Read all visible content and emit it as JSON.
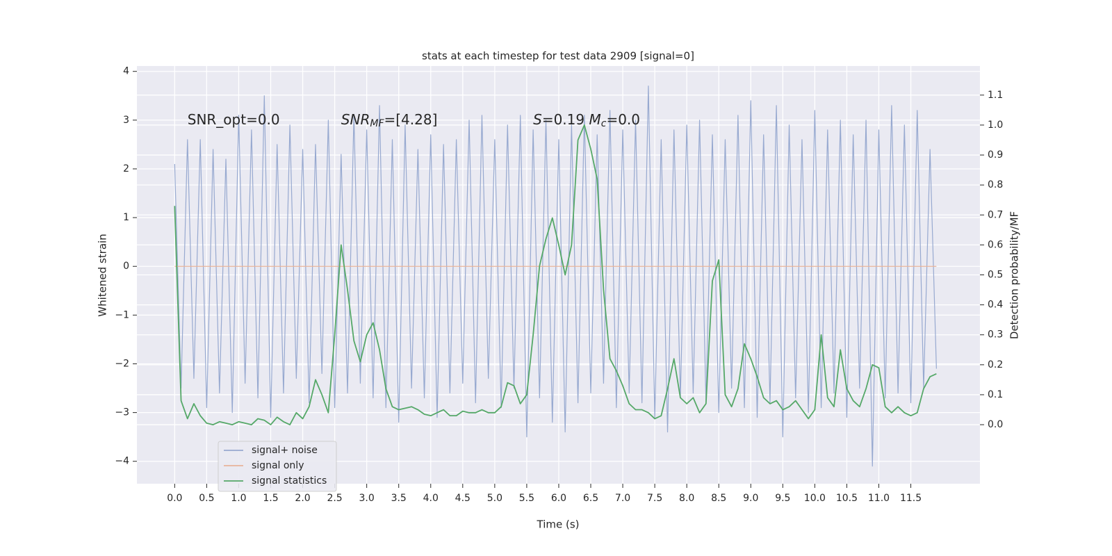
{
  "chart_data": {
    "type": "line",
    "title": "stats at each timestep for test data 2909 [signal=0]",
    "x_label": "Time (s)",
    "y_label": "Whitened strain",
    "y2_label": "Detection probability/MF",
    "xlim": [
      -0.59,
      12.58
    ],
    "ylim": [
      -4.46,
      4.11
    ],
    "y2lim": [
      -0.197,
      1.197
    ],
    "xticks": [
      {
        "value": 0,
        "label": "0.0"
      },
      0.5,
      {
        "value": 1,
        "label": "1.0"
      },
      1.5,
      {
        "value": 2,
        "label": "2.0"
      },
      2.5,
      {
        "value": 3,
        "label": "3.0"
      },
      3.5,
      {
        "value": 4,
        "label": "4.0"
      },
      4.5,
      {
        "value": 5,
        "label": "5.0"
      },
      5.5,
      {
        "value": 6,
        "label": "6.0"
      },
      6.5,
      {
        "value": 7,
        "label": "7.0"
      },
      7.5,
      {
        "value": 8,
        "label": "8.0"
      },
      8.5,
      {
        "value": 9,
        "label": "9.0"
      },
      9.5,
      {
        "value": 10,
        "label": "10.0"
      },
      10.5,
      {
        "value": 11,
        "label": "11.0"
      },
      11.5
    ],
    "yticks": [
      {
        "value": -4,
        "label": "−4"
      },
      {
        "value": -3,
        "label": "−3"
      },
      {
        "value": -2,
        "label": "−2"
      },
      {
        "value": -1,
        "label": "−1"
      },
      0,
      1,
      2,
      3,
      4
    ],
    "y2ticks": [
      {
        "value": 0,
        "label": "0.0"
      },
      0.1,
      0.2,
      0.3,
      0.4,
      0.5,
      0.6,
      0.7,
      0.8,
      0.9,
      {
        "value": 1,
        "label": "1.0"
      },
      1.1
    ],
    "grid": true,
    "legend": "lower left",
    "x": [
      0,
      0.1,
      0.2,
      0.3,
      0.4,
      0.5,
      0.6,
      0.7,
      0.8,
      0.9,
      1,
      1.1,
      1.2,
      1.3,
      1.4,
      1.5,
      1.6,
      1.7,
      1.8,
      1.9,
      2,
      2.1,
      2.2,
      2.3,
      2.4,
      2.5,
      2.6,
      2.7,
      2.8,
      2.9,
      3,
      3.1,
      3.2,
      3.3,
      3.4,
      3.5,
      3.6,
      3.7,
      3.8,
      3.9,
      4,
      4.1,
      4.2,
      4.3,
      4.4,
      4.5,
      4.6,
      4.7,
      4.8,
      4.9,
      5,
      5.1,
      5.2,
      5.3,
      5.4,
      5.5,
      5.6,
      5.7,
      5.8,
      5.9,
      6,
      6.1,
      6.2,
      6.3,
      6.4,
      6.5,
      6.6,
      6.7,
      6.8,
      6.9,
      7,
      7.1,
      7.2,
      7.3,
      7.4,
      7.5,
      7.6,
      7.7,
      7.8,
      7.9,
      8,
      8.1,
      8.2,
      8.3,
      8.4,
      8.5,
      8.6,
      8.7,
      8.8,
      8.9,
      9,
      9.1,
      9.2,
      9.3,
      9.4,
      9.5,
      9.6,
      9.7,
      9.8,
      9.9,
      10,
      10.1,
      10.2,
      10.3,
      10.4,
      10.5,
      10.6,
      10.7,
      10.8,
      10.9,
      11,
      11.1,
      11.2,
      11.3,
      11.4,
      11.5,
      11.6,
      11.7,
      11.8,
      11.9
    ],
    "series": [
      {
        "name": "signal+ noise",
        "color": "#97a9d0",
        "values": [
          2.1,
          -2.5,
          2.6,
          -2.3,
          2.6,
          -2.9,
          2.4,
          -2.6,
          2.2,
          -3.0,
          3.1,
          -2.4,
          2.8,
          -2.7,
          3.5,
          -3.1,
          2.5,
          -2.6,
          2.9,
          -2.3,
          2.4,
          -2.8,
          2.5,
          -2.2,
          3.0,
          -2.9,
          2.3,
          -2.6,
          3.1,
          -2.4,
          2.8,
          -2.7,
          3.3,
          -2.9,
          2.6,
          -3.2,
          2.9,
          -2.5,
          2.4,
          -2.7,
          2.7,
          -3.1,
          2.5,
          -2.6,
          2.6,
          -2.4,
          3.0,
          -2.8,
          3.1,
          -2.3,
          2.6,
          -2.9,
          2.9,
          -2.5,
          3.1,
          -3.5,
          2.8,
          -2.7,
          3.0,
          -3.2,
          2.6,
          -3.4,
          2.9,
          -2.8,
          3.1,
          -2.6,
          2.7,
          -2.4,
          3.2,
          -2.9,
          2.8,
          -2.6,
          3.0,
          -2.8,
          3.7,
          -3.1,
          2.6,
          -3.4,
          2.8,
          -2.7,
          2.9,
          -2.6,
          3.0,
          -2.8,
          2.7,
          -3.0,
          2.6,
          -2.5,
          3.1,
          -2.9,
          3.4,
          -3.1,
          2.7,
          -2.8,
          3.3,
          -3.5,
          2.9,
          -2.7,
          2.6,
          -3.0,
          3.2,
          -2.9,
          2.8,
          -2.6,
          3.0,
          -3.1,
          2.7,
          -2.5,
          3.0,
          -4.1,
          2.8,
          -2.7,
          3.3,
          -2.6,
          2.9,
          -2.8,
          3.2,
          -2.5,
          2.4,
          -2.1
        ]
      },
      {
        "name": "signal only",
        "color": "#e8b39a",
        "values": [
          0,
          0,
          0,
          0,
          0,
          0,
          0,
          0,
          0,
          0,
          0,
          0,
          0,
          0,
          0,
          0,
          0,
          0,
          0,
          0,
          0,
          0,
          0,
          0,
          0,
          0,
          0,
          0,
          0,
          0,
          0,
          0,
          0,
          0,
          0,
          0,
          0,
          0,
          0,
          0,
          0,
          0,
          0,
          0,
          0,
          0,
          0,
          0,
          0,
          0,
          0,
          0,
          0,
          0,
          0,
          0,
          0,
          0,
          0,
          0,
          0,
          0,
          0,
          0,
          0,
          0,
          0,
          0,
          0,
          0,
          0,
          0,
          0,
          0,
          0,
          0,
          0,
          0,
          0,
          0,
          0,
          0,
          0,
          0,
          0,
          0,
          0,
          0,
          0,
          0,
          0,
          0,
          0,
          0,
          0,
          0,
          0,
          0,
          0,
          0,
          0,
          0,
          0,
          0,
          0,
          0,
          0,
          0,
          0,
          0,
          0,
          0,
          0,
          0,
          0,
          0,
          0,
          0,
          0,
          0
        ]
      },
      {
        "name": "signal statistics",
        "color": "#55a868",
        "axis": "y2",
        "values": [
          0.73,
          0.08,
          0.02,
          0.07,
          0.03,
          0.005,
          0.0,
          0.01,
          0.005,
          0.0,
          0.01,
          0.005,
          0.0,
          0.02,
          0.015,
          0.0,
          0.025,
          0.01,
          0.0,
          0.04,
          0.02,
          0.06,
          0.15,
          0.1,
          0.04,
          0.3,
          0.6,
          0.45,
          0.28,
          0.21,
          0.3,
          0.34,
          0.25,
          0.12,
          0.06,
          0.05,
          0.055,
          0.06,
          0.05,
          0.035,
          0.03,
          0.04,
          0.05,
          0.03,
          0.03,
          0.045,
          0.04,
          0.04,
          0.05,
          0.04,
          0.04,
          0.06,
          0.14,
          0.13,
          0.07,
          0.1,
          0.3,
          0.53,
          0.62,
          0.69,
          0.6,
          0.5,
          0.6,
          0.95,
          1.0,
          0.92,
          0.82,
          0.45,
          0.22,
          0.18,
          0.13,
          0.07,
          0.05,
          0.05,
          0.04,
          0.02,
          0.03,
          0.12,
          0.22,
          0.09,
          0.07,
          0.09,
          0.04,
          0.07,
          0.48,
          0.55,
          0.1,
          0.06,
          0.12,
          0.27,
          0.22,
          0.16,
          0.09,
          0.07,
          0.08,
          0.05,
          0.06,
          0.08,
          0.05,
          0.02,
          0.05,
          0.3,
          0.09,
          0.06,
          0.25,
          0.12,
          0.08,
          0.06,
          0.12,
          0.2,
          0.19,
          0.06,
          0.04,
          0.06,
          0.04,
          0.03,
          0.04,
          0.12,
          0.16,
          0.17
        ]
      }
    ],
    "annotations": [
      {
        "x": 0.2,
        "y": 3,
        "parts": [
          "SNR_opt=0.0"
        ],
        "formats": [
          "normal"
        ]
      },
      {
        "x": 2.6,
        "y": 3,
        "parts": [
          "SNR",
          "MF",
          "=[4.28]"
        ],
        "formats": [
          "italic",
          "italic-sub",
          "normal"
        ]
      },
      {
        "x": 5.6,
        "y": 3,
        "parts": [
          "S",
          "=0.19  ",
          "M",
          "c",
          "=0.0"
        ],
        "formats": [
          "italic",
          "normal",
          "italic",
          "italic-sub",
          "normal"
        ]
      }
    ]
  }
}
